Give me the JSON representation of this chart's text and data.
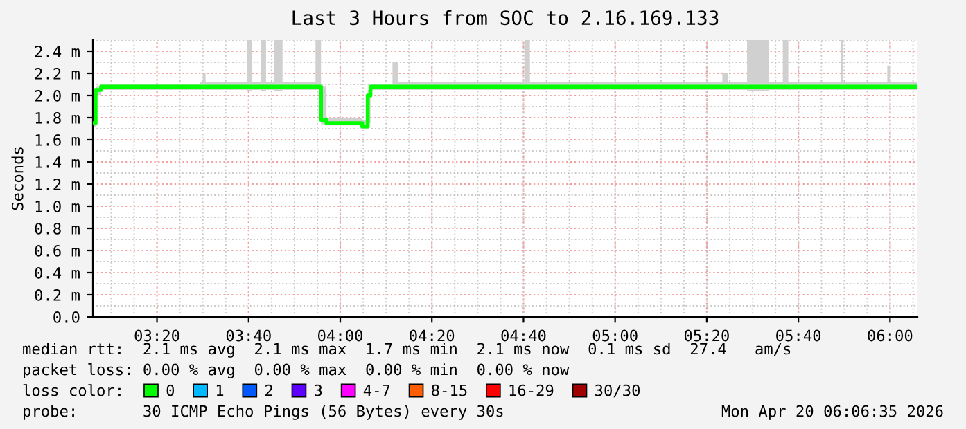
{
  "chart_data": {
    "type": "step",
    "title": "Last 3 Hours from SOC to 2.16.169.133",
    "ylabel": "Seconds",
    "x": [
      3.1,
      3.11,
      3.13,
      3.49,
      3.5,
      3.51,
      3.66,
      3.68,
      3.71,
      3.73,
      3.76,
      3.79,
      3.91,
      3.93,
      3.95,
      4.08,
      4.1,
      4.11,
      4.19,
      4.21,
      4.67,
      4.69,
      5.39,
      5.41,
      5.48,
      5.56,
      5.61,
      5.63,
      5.82,
      5.83,
      5.99,
      6.0,
      6.1
    ],
    "series": [
      {
        "name": "0",
        "color": "#00ff00",
        "values": [
          1.75,
          2.05,
          2.08,
          2.08,
          2.08,
          2.08,
          2.08,
          2.08,
          2.08,
          2.08,
          2.08,
          2.08,
          2.08,
          1.78,
          1.75,
          1.72,
          2.0,
          2.08,
          2.08,
          2.08,
          2.08,
          2.08,
          2.08,
          2.08,
          2.08,
          2.08,
          2.08,
          2.08,
          2.08,
          2.08,
          2.08,
          2.08,
          2.08
        ],
        "lower": [
          1.72,
          2.0,
          2.05,
          2.05,
          2.05,
          2.05,
          2.04,
          2.05,
          2.04,
          2.05,
          2.04,
          2.05,
          2.05,
          1.74,
          1.73,
          1.7,
          1.75,
          2.05,
          2.05,
          2.05,
          2.05,
          2.05,
          2.05,
          2.05,
          2.04,
          2.05,
          2.05,
          2.05,
          2.05,
          2.05,
          2.05,
          2.05,
          2.05
        ],
        "upper": [
          2.05,
          2.08,
          2.1,
          2.12,
          2.2,
          2.12,
          2.5,
          2.12,
          2.5,
          2.12,
          2.5,
          2.12,
          2.5,
          2.08,
          1.8,
          1.78,
          2.05,
          2.1,
          2.3,
          2.12,
          2.5,
          2.12,
          2.2,
          2.12,
          2.5,
          2.12,
          2.5,
          2.12,
          2.5,
          2.12,
          2.27,
          2.12,
          2.12
        ]
      },
      {
        "name": "1",
        "color": "#00b8ff",
        "values": [
          null,
          null,
          null,
          null,
          null,
          null,
          null,
          null,
          null,
          null,
          null,
          null,
          null,
          null,
          null,
          null,
          null,
          null,
          null,
          null,
          null,
          null,
          null,
          null,
          null,
          null,
          null,
          null,
          null,
          null,
          null,
          null,
          null
        ]
      },
      {
        "name": "2",
        "color": "#0059ff",
        "values": [
          null,
          null,
          null,
          null,
          null,
          null,
          null,
          null,
          null,
          null,
          null,
          null,
          null,
          null,
          null,
          null,
          null,
          null,
          null,
          null,
          null,
          null,
          null,
          null,
          null,
          null,
          null,
          null,
          null,
          null,
          null,
          null,
          null
        ]
      },
      {
        "name": "3",
        "color": "#5e00ff",
        "values": [
          null,
          null,
          null,
          null,
          null,
          null,
          null,
          null,
          null,
          null,
          null,
          null,
          null,
          null,
          null,
          null,
          null,
          null,
          null,
          null,
          null,
          null,
          null,
          null,
          null,
          null,
          null,
          null,
          null,
          null,
          null,
          null,
          null
        ]
      },
      {
        "name": "4-7",
        "color": "#ff00ff",
        "values": [
          null,
          null,
          null,
          null,
          null,
          null,
          null,
          null,
          null,
          null,
          null,
          null,
          null,
          null,
          null,
          null,
          null,
          null,
          null,
          null,
          null,
          null,
          null,
          null,
          null,
          null,
          null,
          null,
          null,
          null,
          null,
          null,
          null
        ]
      },
      {
        "name": "8-15",
        "color": "#ff5e00",
        "values": [
          null,
          null,
          null,
          null,
          null,
          null,
          null,
          null,
          null,
          null,
          null,
          null,
          null,
          null,
          null,
          null,
          null,
          null,
          null,
          null,
          null,
          null,
          null,
          null,
          null,
          null,
          null,
          null,
          null,
          null,
          null,
          null,
          null
        ]
      },
      {
        "name": "16-29",
        "color": "#ff0000",
        "values": [
          null,
          null,
          null,
          null,
          null,
          null,
          null,
          null,
          null,
          null,
          null,
          null,
          null,
          null,
          null,
          null,
          null,
          null,
          null,
          null,
          null,
          null,
          null,
          null,
          null,
          null,
          null,
          null,
          null,
          null,
          null,
          null,
          null
        ]
      },
      {
        "name": "30/30",
        "color": "#a10000",
        "values": [
          null,
          null,
          null,
          null,
          null,
          null,
          null,
          null,
          null,
          null,
          null,
          null,
          null,
          null,
          null,
          null,
          null,
          null,
          null,
          null,
          null,
          null,
          null,
          null,
          null,
          null,
          null,
          null,
          null,
          null,
          null,
          null,
          null
        ]
      }
    ],
    "legend": "bottom",
    "legend_title": "loss color:",
    "xlim": [
      3.1,
      6.1
    ],
    "xticks": [
      {
        "value": 3.3333,
        "label": "03:20"
      },
      {
        "value": 3.6667,
        "label": "03:40"
      },
      {
        "value": 4.0,
        "label": "04:00"
      },
      {
        "value": 4.3333,
        "label": "04:20"
      },
      {
        "value": 4.6667,
        "label": "04:40"
      },
      {
        "value": 5.0,
        "label": "05:00"
      },
      {
        "value": 5.3333,
        "label": "05:20"
      },
      {
        "value": 5.6667,
        "label": "05:40"
      },
      {
        "value": 6.0,
        "label": "06:00"
      }
    ],
    "ylim": [
      0,
      2.5
    ],
    "yticks": [
      {
        "value": 0,
        "label": "0.0"
      },
      {
        "value": 0.2,
        "label": "0.2 m"
      },
      {
        "value": 0.4,
        "label": "0.4 m"
      },
      {
        "value": 0.6,
        "label": "0.6 m"
      },
      {
        "value": 0.8,
        "label": "0.8 m"
      },
      {
        "value": 1.0,
        "label": "1.0 m"
      },
      {
        "value": 1.2,
        "label": "1.2 m"
      },
      {
        "value": 1.4,
        "label": "1.4 m"
      },
      {
        "value": 1.6,
        "label": "1.6 m"
      },
      {
        "value": 1.8,
        "label": "1.8 m"
      },
      {
        "value": 2.0,
        "label": "2.0 m"
      },
      {
        "value": 2.2,
        "label": "2.2 m"
      },
      {
        "value": 2.4,
        "label": "2.4 m"
      }
    ],
    "grid": true,
    "annotations": [
      "median rtt:  2.1 ms avg  2.1 ms max  1.7 ms min  2.1 ms now  0.1 ms sd  27.4   am/s",
      "packet loss: 0.00 % avg  0.00 % max  0.00 % min  0.00 % now",
      "probe:       30 ICMP Echo Pings (56 Bytes) every 30s",
      "Mon Apr 20 06:06:35 2026"
    ]
  }
}
